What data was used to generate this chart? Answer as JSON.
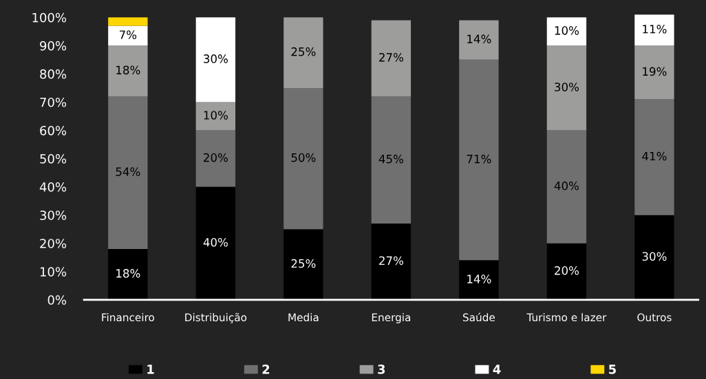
{
  "chart_data": {
    "type": "bar",
    "stacked": true,
    "categories": [
      "Financeiro",
      "Distribuição",
      "Media",
      "Energia",
      "Saúde",
      "Turismo e lazer",
      "Outros"
    ],
    "series": [
      {
        "name": "1",
        "color": "#000000",
        "values": [
          18,
          40,
          25,
          27,
          14,
          20,
          30
        ],
        "value_labels": [
          "18%",
          "40%",
          "25%",
          "27%",
          "14%",
          "20%",
          "30%"
        ]
      },
      {
        "name": "2",
        "color": "#707070",
        "values": [
          54,
          20,
          50,
          45,
          71,
          40,
          41
        ],
        "value_labels": [
          "54%",
          "20%",
          "50%",
          "45%",
          "71%",
          "40%",
          "41%"
        ]
      },
      {
        "name": "3",
        "color": "#9d9d9b",
        "values": [
          18,
          10,
          25,
          27,
          14,
          30,
          19
        ],
        "value_labels": [
          "18%",
          "10%",
          "25%",
          "27%",
          "14%",
          "30%",
          "19%"
        ]
      },
      {
        "name": "4",
        "color": "#ffffff",
        "values": [
          7,
          30,
          null,
          null,
          null,
          10,
          11
        ],
        "value_labels": [
          "7%",
          "30%",
          null,
          null,
          null,
          "10%",
          "11%"
        ]
      },
      {
        "name": "5",
        "color": "#ffd500",
        "values": [
          3,
          null,
          null,
          null,
          null,
          null,
          null
        ]
      }
    ],
    "ylim": [
      0,
      102
    ],
    "yticks": [
      {
        "value": 0,
        "label": "0%"
      },
      {
        "value": 10,
        "label": "10%"
      },
      {
        "value": 20,
        "label": "20%"
      },
      {
        "value": 30,
        "label": "30%"
      },
      {
        "value": 40,
        "label": "40%"
      },
      {
        "value": 50,
        "label": "50%"
      },
      {
        "value": 60,
        "label": "60%"
      },
      {
        "value": 70,
        "label": "70%"
      },
      {
        "value": 80,
        "label": "80%"
      },
      {
        "value": 90,
        "label": "90%"
      },
      {
        "value": 100,
        "label": "100%"
      }
    ],
    "legend": "bottom"
  }
}
